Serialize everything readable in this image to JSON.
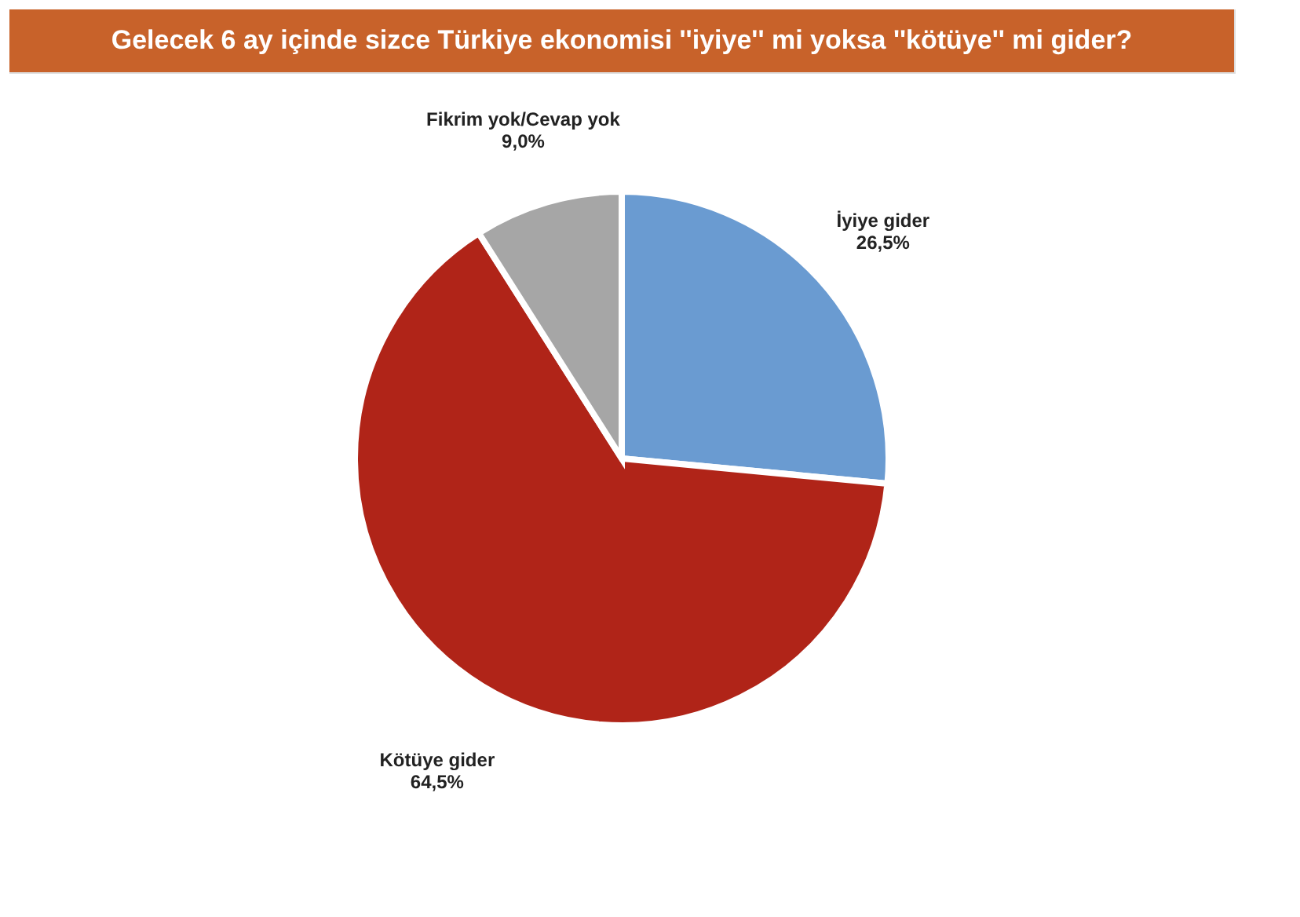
{
  "chart_data": {
    "type": "pie",
    "title": "Gelecek 6 ay içinde sizce Türkiye ekonomisi ''iyiye'' mi yoksa ''kötüye'' mi gider?",
    "categories": [
      "İyiye gider",
      "Kötüye gider",
      "Fikrim yok/Cevap yok"
    ],
    "values": [
      26.5,
      64.5,
      9.0
    ],
    "colors": [
      "#6a9bd1",
      "#b02418",
      "#a6a6a6"
    ],
    "value_labels": [
      "26,5%",
      "64,5%",
      "9,0%"
    ]
  }
}
